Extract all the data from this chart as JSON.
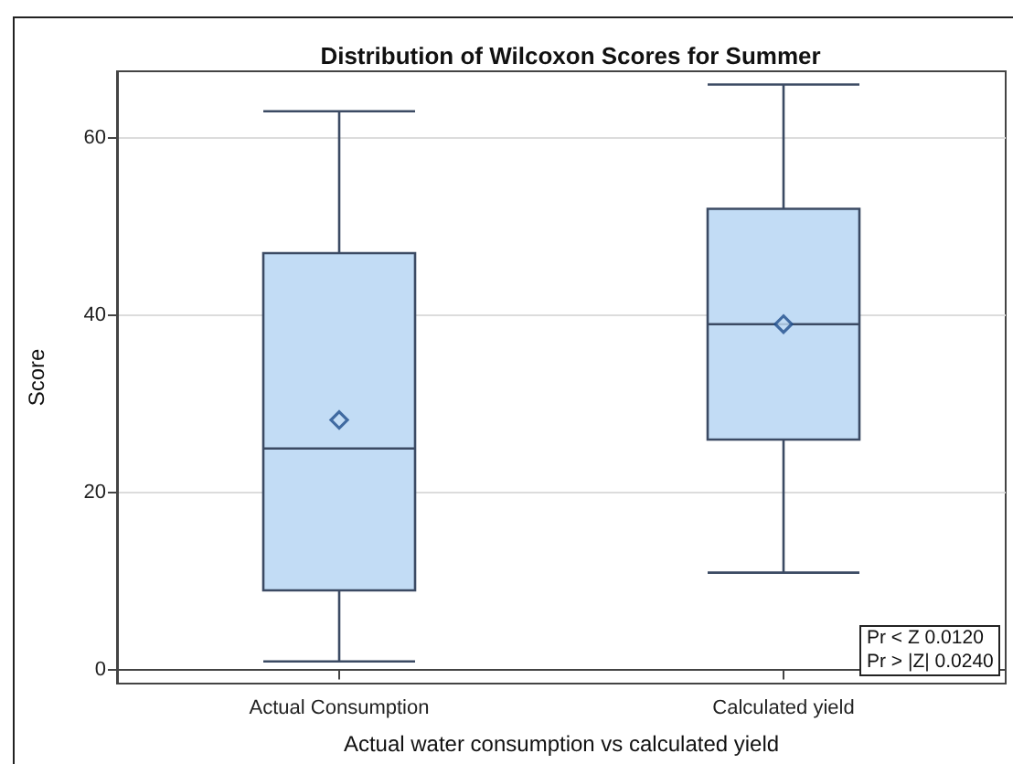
{
  "chart_data": {
    "type": "box",
    "title": "Distribution of Wilcoxon Scores for Summer",
    "xlabel": "Actual water consumption vs calculated yield",
    "ylabel": "Score",
    "categories": [
      "Actual Consumption",
      "Calculated yield"
    ],
    "boxes": [
      {
        "low": 1,
        "q1": 9,
        "median": 25,
        "q3": 47,
        "high": 63,
        "mean": 28.2
      },
      {
        "low": 11,
        "q1": 26,
        "median": 39,
        "q3": 52,
        "high": 66,
        "mean": 39
      }
    ],
    "color": "#c2dcf5",
    "ylim": [
      -1.5,
      67.5
    ],
    "yticks": [
      0,
      20,
      40,
      60
    ],
    "grid": "y",
    "marker": "diamond",
    "annotations": [
      "Pr < Z 0.0120",
      "Pr > |Z| 0.0240"
    ]
  }
}
